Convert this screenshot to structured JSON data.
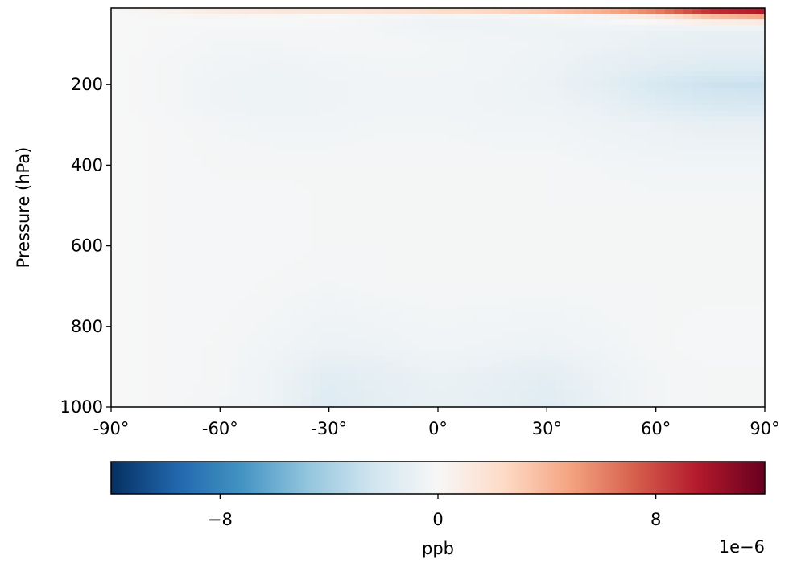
{
  "chart_data": {
    "type": "heatmap",
    "title": "",
    "xlabel": "",
    "ylabel": "Pressure (hPa)",
    "xlim": [
      -90,
      90
    ],
    "ylim": [
      1000,
      10
    ],
    "y_inverted": true,
    "xticks": [
      -90,
      -60,
      -30,
      0,
      30,
      60,
      90
    ],
    "xtick_labels": [
      "-90°",
      "-60°",
      "-30°",
      "0°",
      "30°",
      "60°",
      "90°"
    ],
    "yticks": [
      200,
      400,
      600,
      800,
      1000
    ],
    "ytick_labels": [
      "200",
      "400",
      "600",
      "800",
      "1000"
    ],
    "colormap": "RdBu_r",
    "colormap_stops": [
      "#053061",
      "#2166ac",
      "#4393c3",
      "#92c5de",
      "#d1e5f0",
      "#f7f7f7",
      "#fddbc7",
      "#f4a582",
      "#d6604d",
      "#b2182b",
      "#67001f"
    ],
    "value_range": [
      -1.2e-05,
      1.2e-05
    ],
    "grid": false,
    "levels_hpa": [
      10,
      30,
      50,
      70,
      100,
      150,
      200,
      250,
      300,
      400,
      500,
      600,
      700,
      850,
      925,
      1000
    ],
    "latitudes": [
      -90,
      -75,
      -60,
      -45,
      -30,
      -15,
      0,
      15,
      30,
      45,
      60,
      75,
      90
    ],
    "values_e6": [
      [
        0.0,
        0.5,
        1.5,
        2.0,
        2.2,
        2.5,
        3.5,
        4.0,
        5.0,
        6.5,
        8.5,
        11.5,
        12.0
      ],
      [
        0.0,
        0.1,
        0.2,
        0.1,
        0.0,
        -0.2,
        -0.3,
        -0.2,
        0.0,
        0.3,
        1.5,
        4.0,
        5.0
      ],
      [
        0.0,
        -0.1,
        -0.1,
        -0.1,
        -0.1,
        -0.3,
        -0.6,
        -0.6,
        -0.5,
        -0.4,
        -0.3,
        -0.2,
        -0.2
      ],
      [
        0.0,
        -0.1,
        -0.2,
        -0.2,
        -0.2,
        -0.3,
        -0.4,
        -0.5,
        -0.6,
        -0.7,
        -0.8,
        -0.9,
        -0.9
      ],
      [
        0.0,
        -0.1,
        -0.3,
        -0.3,
        -0.2,
        -0.2,
        -0.3,
        -0.4,
        -0.5,
        -0.7,
        -0.9,
        -1.1,
        -1.1
      ],
      [
        0.0,
        -0.2,
        -0.4,
        -0.5,
        -0.4,
        -0.3,
        -0.3,
        -0.4,
        -0.6,
        -1.0,
        -1.3,
        -1.5,
        -1.5
      ],
      [
        0.0,
        -0.2,
        -0.5,
        -0.6,
        -0.5,
        -0.4,
        -0.4,
        -0.5,
        -0.7,
        -1.2,
        -2.0,
        -2.6,
        -2.7
      ],
      [
        0.0,
        -0.2,
        -0.5,
        -0.6,
        -0.5,
        -0.4,
        -0.4,
        -0.5,
        -0.6,
        -0.9,
        -1.5,
        -1.9,
        -2.0
      ],
      [
        0.0,
        -0.1,
        -0.3,
        -0.4,
        -0.4,
        -0.3,
        -0.3,
        -0.4,
        -0.4,
        -0.6,
        -0.8,
        -1.0,
        -1.0
      ],
      [
        0.0,
        -0.1,
        -0.2,
        -0.2,
        -0.2,
        -0.2,
        -0.2,
        -0.2,
        -0.2,
        -0.3,
        -0.4,
        -0.4,
        -0.4
      ],
      [
        0.0,
        -0.1,
        -0.1,
        -0.1,
        -0.2,
        -0.2,
        -0.2,
        -0.2,
        -0.2,
        -0.2,
        -0.2,
        -0.2,
        -0.2
      ],
      [
        0.0,
        -0.1,
        -0.1,
        -0.1,
        -0.2,
        -0.2,
        -0.2,
        -0.2,
        -0.2,
        -0.2,
        -0.2,
        -0.2,
        -0.2
      ],
      [
        0.0,
        -0.1,
        -0.1,
        -0.2,
        -0.3,
        -0.2,
        -0.2,
        -0.2,
        -0.2,
        -0.2,
        -0.2,
        -0.2,
        -0.2
      ],
      [
        0.0,
        -0.1,
        -0.2,
        -0.4,
        -0.7,
        -0.6,
        -0.4,
        -0.5,
        -0.6,
        -0.4,
        -0.2,
        -0.1,
        -0.1
      ],
      [
        0.0,
        -0.1,
        -0.2,
        -0.6,
        -1.4,
        -1.1,
        -0.8,
        -1.0,
        -1.3,
        -0.7,
        -0.3,
        -0.2,
        -0.2
      ],
      [
        0.0,
        -0.1,
        -0.3,
        -0.6,
        -1.6,
        -1.2,
        -0.9,
        -1.1,
        -1.5,
        -0.8,
        -0.3,
        -0.2,
        -0.2
      ]
    ],
    "colorbar": {
      "orientation": "horizontal",
      "label": "ppb",
      "ticks": [
        -8,
        0,
        8
      ],
      "tick_labels": [
        "−8",
        "0",
        "8"
      ],
      "offset_text": "1e−6"
    }
  }
}
